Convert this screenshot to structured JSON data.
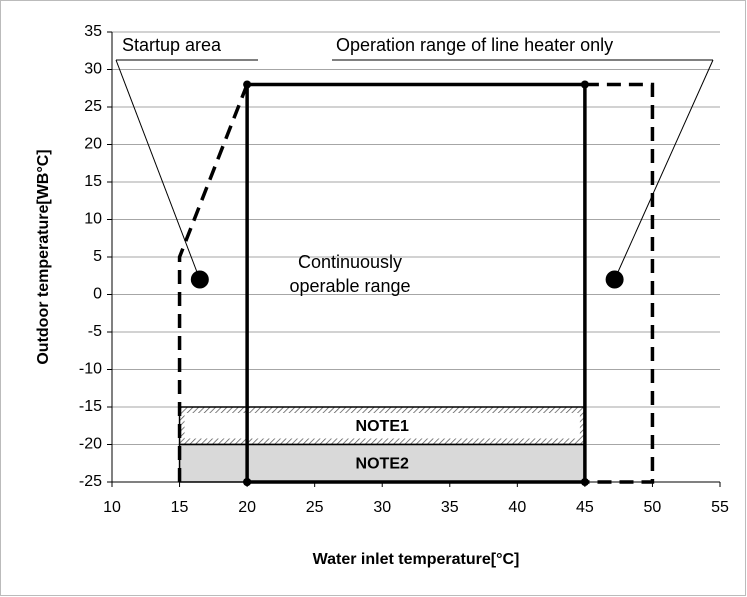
{
  "chart_data": {
    "type": "line",
    "x_label": "Water inlet temperature[°C]",
    "y_label": "Outdoor  temperature[WB°C]",
    "xlim": [
      10,
      55
    ],
    "xticks": [
      10,
      15,
      20,
      25,
      30,
      35,
      40,
      45,
      50,
      55
    ],
    "ylim": [
      -25,
      35
    ],
    "yticks": [
      -25,
      -20,
      -15,
      -10,
      -5,
      0,
      5,
      10,
      15,
      20,
      25,
      30,
      35
    ],
    "grid": true,
    "series": [
      {
        "name": "Continuously operable range",
        "color": "#000000",
        "dash": false,
        "x": [
          20,
          20,
          45,
          45,
          20
        ],
        "y": [
          -25,
          28,
          28,
          -25,
          -25
        ]
      },
      {
        "name": "Startup area",
        "color": "#000000",
        "dash": true,
        "x": [
          15,
          15,
          20
        ],
        "y": [
          -25,
          5,
          28
        ],
        "callout": [
          16.5,
          2
        ]
      },
      {
        "name": "Operation range of line heater only",
        "color": "#000000",
        "dash": true,
        "x": [
          45,
          50,
          50,
          45
        ],
        "y": [
          28,
          28,
          -25,
          -25
        ],
        "callout": [
          47.2,
          2
        ]
      }
    ],
    "bands": [
      {
        "label": "NOTE1",
        "x": [
          15,
          45
        ],
        "y": [
          -20,
          -15
        ],
        "pattern": "hatch"
      },
      {
        "label": "NOTE2",
        "x": [
          15,
          45
        ],
        "y": [
          -25,
          -20
        ],
        "color": "#d9d9d9"
      }
    ]
  }
}
